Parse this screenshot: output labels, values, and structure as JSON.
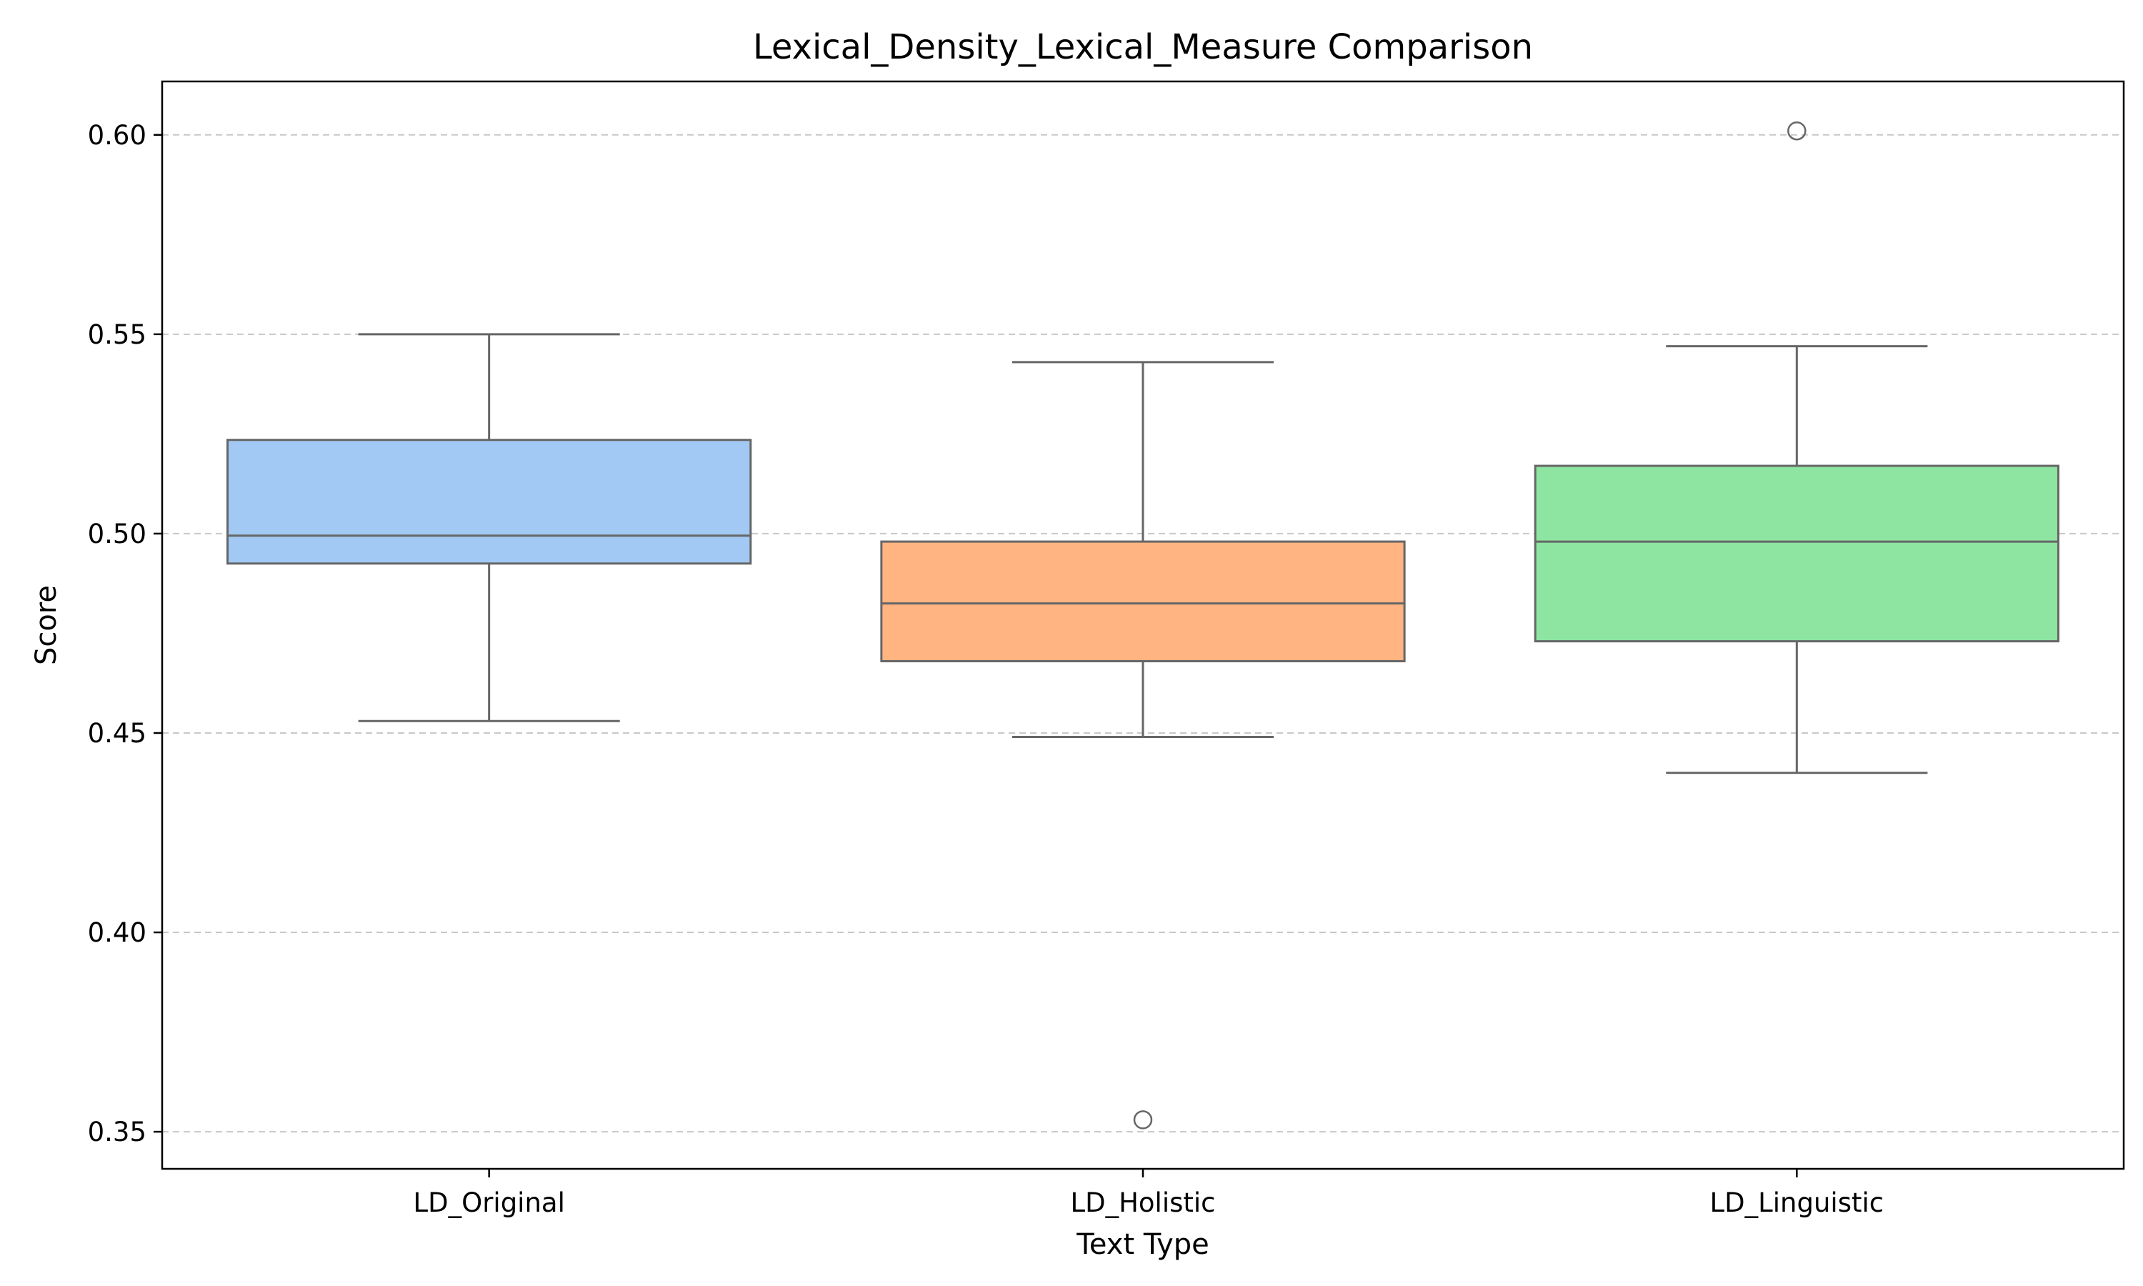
{
  "chart_data": {
    "type": "box",
    "title": "Lexical_Density_Lexical_Measure Comparison",
    "xlabel": "Text Type",
    "ylabel": "Score",
    "ylim": [
      0.3407,
      0.6134
    ],
    "yticks": [
      0.35,
      0.4,
      0.45,
      0.5,
      0.55,
      0.6
    ],
    "ytick_labels": [
      "0.35",
      "0.40",
      "0.45",
      "0.50",
      "0.55",
      "0.60"
    ],
    "grid": "horizontal dashed",
    "categories": [
      "LD_Original",
      "LD_Holistic",
      "LD_Linguistic"
    ],
    "boxes": [
      {
        "category": "LD_Original",
        "whislo": 0.453,
        "q1": 0.4925,
        "med": 0.4995,
        "q3": 0.5235,
        "whishi": 0.55,
        "fliers": [],
        "color": "#a1c9f4"
      },
      {
        "category": "LD_Holistic",
        "whislo": 0.449,
        "q1": 0.468,
        "med": 0.4825,
        "q3": 0.498,
        "whishi": 0.543,
        "fliers": [
          0.353
        ],
        "color": "#ffb482"
      },
      {
        "category": "LD_Linguistic",
        "whislo": 0.44,
        "q1": 0.473,
        "med": 0.498,
        "q3": 0.517,
        "whishi": 0.547,
        "fliers": [
          0.601
        ],
        "color": "#8de5a1"
      }
    ],
    "box_edge_color": "#666666",
    "grid_color": "#c8c8c8"
  }
}
